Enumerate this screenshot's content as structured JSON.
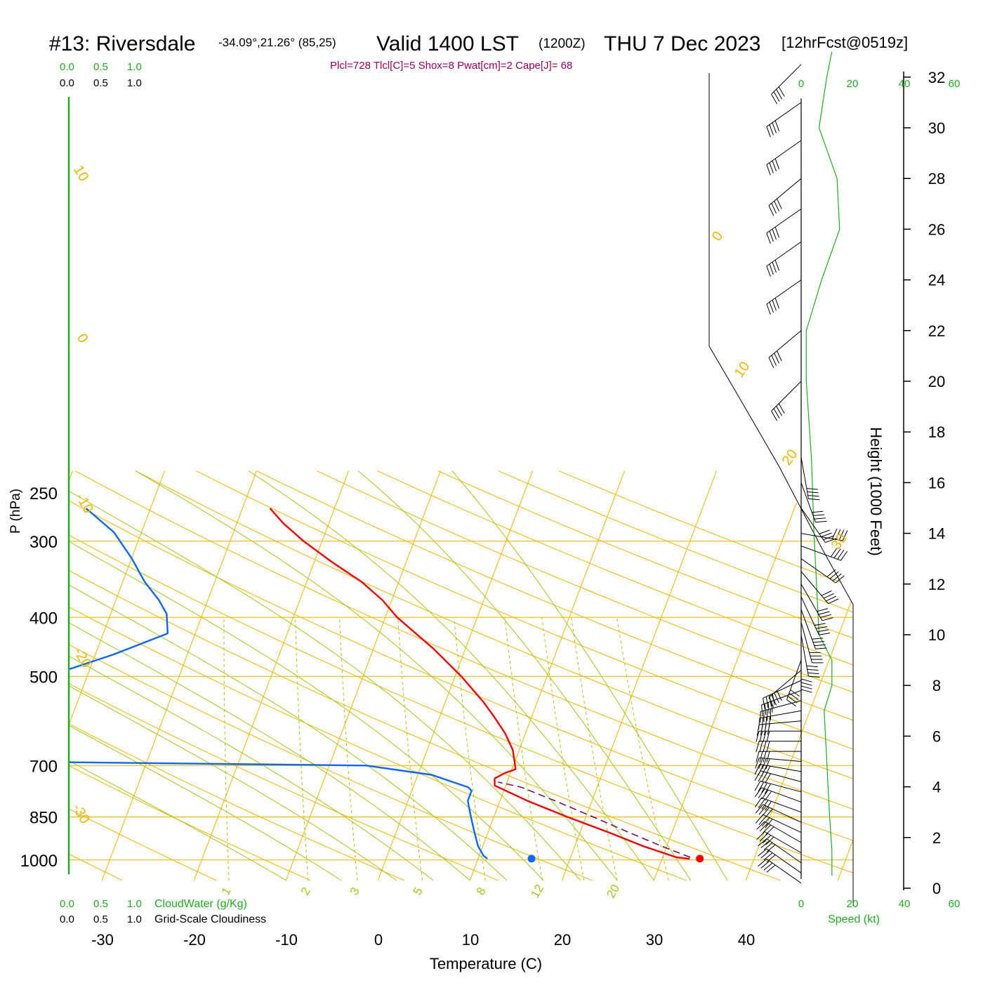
{
  "header": {
    "station": "#13: Riversdale",
    "location": "-34.09°,21.26° (85,25)",
    "valid": "Valid 1400 LST",
    "utc": "(1200Z)",
    "date": "THU 7 Dec 2023",
    "forecast": "[12hrFcst@0519z]",
    "indices": "Plcl=728 Tlcl[C]=5 Shox=8 Pwat[cm]=2 Cape[J]= 68"
  },
  "colors": {
    "temperature": "#ee0000",
    "dewpoint": "#1166ee",
    "isotherm": "#f0b400",
    "dry_adiabat": "#f0b400",
    "moist_adiabat": "#9fc71a",
    "mixing_ratio": "#9fc71a",
    "cloud_axis": "#22aa22",
    "parcel": "#770055",
    "indices_text": "#990055",
    "barb": "#000000",
    "speed_profile": "#22aa22"
  },
  "chart_data": {
    "type": "line",
    "title": "#13: Riversdale  Valid 1400 LST (1200Z) THU 7 Dec 2023 [12hrFcst@0519z]",
    "xlabel": "Temperature (C)",
    "ylabel": "P (hPa)",
    "y2label": "Height (1000 Feet)",
    "x_ticks": [
      "-30",
      "-20",
      "-10",
      "0",
      "10",
      "20",
      "30",
      "40"
    ],
    "p_ticks": [
      "250",
      "300",
      "400",
      "500",
      "700",
      "850",
      "1000"
    ],
    "height_ticks": [
      "0",
      "2",
      "4",
      "6",
      "8",
      "10",
      "12",
      "14",
      "16",
      "18",
      "20",
      "22",
      "24",
      "26",
      "28",
      "30",
      "32"
    ],
    "cloud_axis": {
      "top_green": [
        "0.0",
        "0.5",
        "1.0"
      ],
      "top_black": [
        "0.0",
        "0.5",
        "1.0"
      ],
      "bottom_green": [
        "0.0",
        "0.5",
        "1.0"
      ],
      "bottom_black": [
        "0.0",
        "0.5",
        "1.0"
      ],
      "green_label": "CloudWater (g/Kg)",
      "black_label": "Grid-Scale Cloudiness"
    },
    "speed_axis": {
      "ticks": [
        "0",
        "20",
        "40",
        "60"
      ],
      "label": "Speed (kt)"
    },
    "dry_adiabat_labels": [
      "10",
      "0",
      "-10",
      "-20",
      "-30",
      "0",
      "10",
      "20",
      "30"
    ],
    "mixing_ratio_labels": [
      "1",
      "2",
      "3",
      "5",
      "8",
      "12",
      "20"
    ],
    "series": [
      {
        "name": "Temperature",
        "points": [
          {
            "p": 265,
            "t": -27
          },
          {
            "p": 280,
            "t": -25
          },
          {
            "p": 300,
            "t": -22
          },
          {
            "p": 325,
            "t": -18
          },
          {
            "p": 350,
            "t": -14
          },
          {
            "p": 375,
            "t": -11
          },
          {
            "p": 400,
            "t": -8.7
          },
          {
            "p": 450,
            "t": -3.5
          },
          {
            "p": 500,
            "t": 0.7
          },
          {
            "p": 550,
            "t": 4.1
          },
          {
            "p": 580,
            "t": 5.8
          },
          {
            "p": 620,
            "t": 7.8
          },
          {
            "p": 660,
            "t": 9.3
          },
          {
            "p": 700,
            "t": 10.2
          },
          {
            "p": 710,
            "t": 10.4
          },
          {
            "p": 720,
            "t": 9.4
          },
          {
            "p": 735,
            "t": 8.5
          },
          {
            "p": 755,
            "t": 8.8
          },
          {
            "p": 800,
            "t": 13
          },
          {
            "p": 850,
            "t": 18
          },
          {
            "p": 900,
            "t": 23
          },
          {
            "p": 950,
            "t": 27.5
          },
          {
            "p": 990,
            "t": 31.5
          },
          {
            "p": 996,
            "t": 33
          }
        ]
      },
      {
        "name": "Dewpoint",
        "points": [
          {
            "p": 265,
            "t": -47
          },
          {
            "p": 290,
            "t": -43
          },
          {
            "p": 320,
            "t": -40
          },
          {
            "p": 350,
            "t": -37.6
          },
          {
            "p": 375,
            "t": -35.3
          },
          {
            "p": 395,
            "t": -33.9
          },
          {
            "p": 425,
            "t": -33
          },
          {
            "p": 460,
            "t": -38
          },
          {
            "p": 500,
            "t": -44.3
          },
          {
            "p": 550,
            "t": -48.7
          },
          {
            "p": 590,
            "t": -51.6
          },
          {
            "p": 640,
            "t": -47
          },
          {
            "p": 660,
            "t": -48.6
          },
          {
            "p": 688,
            "t": -51.3
          },
          {
            "p": 700,
            "t": -6
          },
          {
            "p": 725,
            "t": 1.5
          },
          {
            "p": 760,
            "t": 6
          },
          {
            "p": 770,
            "t": 6.5
          },
          {
            "p": 800,
            "t": 6.5
          },
          {
            "p": 850,
            "t": 7.5
          },
          {
            "p": 900,
            "t": 8.5
          },
          {
            "p": 950,
            "t": 9.5
          },
          {
            "p": 985,
            "t": 10.5
          },
          {
            "p": 995,
            "t": 11
          }
        ]
      },
      {
        "name": "Parcel",
        "points": [
          {
            "p": 990,
            "t": 33
          },
          {
            "p": 950,
            "t": 29.5
          },
          {
            "p": 900,
            "t": 25.2
          },
          {
            "p": 850,
            "t": 20.8
          },
          {
            "p": 800,
            "t": 16
          },
          {
            "p": 760,
            "t": 11.8
          },
          {
            "p": 745,
            "t": 9
          }
        ]
      }
    ],
    "surface_markers": [
      {
        "name": "Surface dewpoint",
        "t": 15.8,
        "p": 995
      },
      {
        "name": "Surface temperature",
        "t": 34.1,
        "p": 995
      }
    ],
    "wind_barbs": [
      {
        "h": 0.2,
        "dir": 305,
        "spd": 40
      },
      {
        "h": 0.6,
        "dir": 305,
        "spd": 40
      },
      {
        "h": 1.0,
        "dir": 305,
        "spd": 40
      },
      {
        "h": 1.4,
        "dir": 300,
        "spd": 40
      },
      {
        "h": 1.8,
        "dir": 300,
        "spd": 40
      },
      {
        "h": 2.2,
        "dir": 295,
        "spd": 40
      },
      {
        "h": 2.6,
        "dir": 295,
        "spd": 40
      },
      {
        "h": 3.0,
        "dir": 290,
        "spd": 40
      },
      {
        "h": 3.4,
        "dir": 290,
        "spd": 40
      },
      {
        "h": 3.8,
        "dir": 285,
        "spd": 40
      },
      {
        "h": 4.2,
        "dir": 285,
        "spd": 40
      },
      {
        "h": 4.6,
        "dir": 280,
        "spd": 40
      },
      {
        "h": 5.0,
        "dir": 275,
        "spd": 40
      },
      {
        "h": 5.4,
        "dir": 270,
        "spd": 40
      },
      {
        "h": 5.8,
        "dir": 270,
        "spd": 40
      },
      {
        "h": 6.2,
        "dir": 270,
        "spd": 40
      },
      {
        "h": 6.6,
        "dir": 265,
        "spd": 40
      },
      {
        "h": 7.0,
        "dir": 260,
        "spd": 40
      },
      {
        "h": 7.4,
        "dir": 255,
        "spd": 40
      },
      {
        "h": 7.8,
        "dir": 250,
        "spd": 40
      },
      {
        "h": 8.2,
        "dir": 245,
        "spd": 40
      },
      {
        "h": 8.6,
        "dir": 230,
        "spd": 40
      },
      {
        "h": 9.0,
        "dir": 200,
        "spd": 40
      },
      {
        "h": 9.5,
        "dir": 180,
        "spd": 40
      },
      {
        "h": 10.0,
        "dir": 170,
        "spd": 40
      },
      {
        "h": 10.5,
        "dir": 165,
        "spd": 40
      },
      {
        "h": 11.0,
        "dir": 160,
        "spd": 40
      },
      {
        "h": 11.5,
        "dir": 155,
        "spd": 40
      },
      {
        "h": 12.0,
        "dir": 150,
        "spd": 40
      },
      {
        "h": 12.5,
        "dir": 140,
        "spd": 40
      },
      {
        "h": 13.0,
        "dir": 125,
        "spd": 40
      },
      {
        "h": 13.5,
        "dir": 110,
        "spd": 40
      },
      {
        "h": 14.0,
        "dir": 100,
        "spd": 40
      },
      {
        "h": 15.0,
        "dir": 145,
        "spd": 40
      },
      {
        "h": 16.0,
        "dir": 160,
        "spd": 40
      },
      {
        "h": 17.0,
        "dir": 170,
        "spd": 40
      },
      {
        "h": 20.0,
        "dir": 225,
        "spd": 40
      },
      {
        "h": 22.0,
        "dir": 230,
        "spd": 40
      },
      {
        "h": 24.0,
        "dir": 235,
        "spd": 40
      },
      {
        "h": 25.5,
        "dir": 235,
        "spd": 40
      },
      {
        "h": 26.8,
        "dir": 235,
        "spd": 40
      },
      {
        "h": 28.0,
        "dir": 230,
        "spd": 40
      },
      {
        "h": 29.5,
        "dir": 235,
        "spd": 40
      },
      {
        "h": 31.0,
        "dir": 235,
        "spd": 40
      },
      {
        "h": 32.5,
        "dir": 225,
        "spd": 40
      }
    ],
    "speed_profile": [
      {
        "h": 0.5,
        "s": 12
      },
      {
        "h": 1.5,
        "s": 12
      },
      {
        "h": 3,
        "s": 11
      },
      {
        "h": 5,
        "s": 10
      },
      {
        "h": 7,
        "s": 9
      },
      {
        "h": 8,
        "s": 12
      },
      {
        "h": 9,
        "s": 12
      },
      {
        "h": 10,
        "s": 7
      },
      {
        "h": 12,
        "s": 6
      },
      {
        "h": 14,
        "s": 5
      },
      {
        "h": 17,
        "s": 4
      },
      {
        "h": 20,
        "s": 2
      },
      {
        "h": 22,
        "s": 2
      },
      {
        "h": 24,
        "s": 8
      },
      {
        "h": 26,
        "s": 15
      },
      {
        "h": 28,
        "s": 14
      },
      {
        "h": 30,
        "s": 7
      },
      {
        "h": 32,
        "s": 10
      },
      {
        "h": 33,
        "s": 12
      }
    ]
  }
}
